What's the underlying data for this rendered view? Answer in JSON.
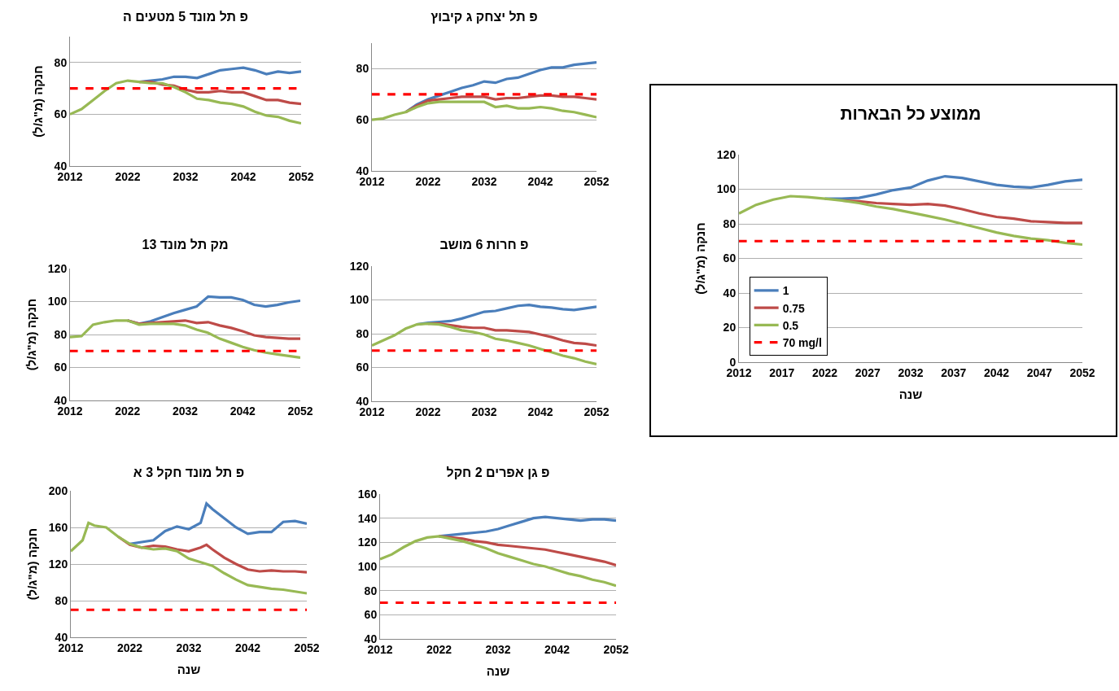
{
  "chart_data": [
    {
      "type": "line",
      "title": "פ תל מונד 5 מטעים ה",
      "ylabel": "חנקה (מ\"ג/ל)",
      "x": [
        2012,
        2014,
        2016,
        2018,
        2020,
        2022,
        2024,
        2026,
        2028,
        2030,
        2032,
        2034,
        2036,
        2038,
        2040,
        2042,
        2044,
        2046,
        2048,
        2050,
        2052
      ],
      "xlim": [
        2012,
        2052
      ],
      "xticks": [
        2012,
        2022,
        2032,
        2042,
        2052
      ],
      "ylim": [
        40,
        90
      ],
      "yticks": [
        40,
        60,
        80
      ],
      "grid": "y",
      "legend": false,
      "series": [
        {
          "color": "#4a7ebb",
          "values": [
            null,
            null,
            null,
            null,
            null,
            null,
            72.5,
            73,
            73.5,
            74.5,
            74.5,
            74,
            75.5,
            77,
            77.5,
            78,
            77,
            75.5,
            76.5,
            76,
            76.5
          ]
        },
        {
          "color": "#be4b48",
          "values": [
            null,
            null,
            null,
            null,
            null,
            null,
            72.5,
            72.5,
            71.5,
            71,
            69.5,
            68.5,
            68.5,
            69,
            68.5,
            68.5,
            67,
            65.5,
            65.5,
            64.5,
            64
          ]
        },
        {
          "color": "#98b954",
          "values": [
            60,
            62,
            65.5,
            69,
            72,
            73,
            72.5,
            72,
            72,
            70.5,
            68.5,
            66,
            65.5,
            64.5,
            64,
            63,
            61,
            59.5,
            59,
            57.5,
            56.5
          ]
        }
      ],
      "ref_lines": [
        {
          "axis": "y",
          "value": 70,
          "color": "#ff0000",
          "line_style": "dashed"
        }
      ]
    },
    {
      "type": "line",
      "title": "פ תל יצחק ג קיבוץ",
      "x": [
        2012,
        2014,
        2016,
        2018,
        2020,
        2022,
        2024,
        2026,
        2028,
        2030,
        2032,
        2034,
        2036,
        2038,
        2040,
        2042,
        2044,
        2046,
        2048,
        2050,
        2052
      ],
      "xlim": [
        2012,
        2052
      ],
      "xticks": [
        2012,
        2022,
        2032,
        2042,
        2052
      ],
      "ylim": [
        40,
        90
      ],
      "yticks": [
        40,
        60,
        80
      ],
      "grid": "y",
      "legend": false,
      "series": [
        {
          "color": "#4a7ebb",
          "values": [
            null,
            null,
            null,
            63,
            66,
            68,
            69.5,
            71,
            72.5,
            73.5,
            75,
            74.5,
            76,
            76.5,
            78,
            79.5,
            80.5,
            80.5,
            81.5,
            82,
            82.5
          ]
        },
        {
          "color": "#be4b48",
          "values": [
            null,
            null,
            null,
            63,
            65.5,
            67.5,
            68,
            68.5,
            69,
            69,
            69,
            68,
            68.5,
            68.5,
            69,
            69.5,
            69.5,
            69,
            69,
            68.5,
            68
          ]
        },
        {
          "color": "#98b954",
          "values": [
            60,
            60.5,
            62,
            63,
            65,
            66.5,
            67,
            67,
            67,
            67,
            67,
            65,
            65.5,
            64.5,
            64.5,
            65,
            64.5,
            63.5,
            63,
            62,
            61
          ]
        }
      ],
      "ref_lines": [
        {
          "axis": "y",
          "value": 70,
          "color": "#ff0000",
          "line_style": "dashed"
        }
      ]
    },
    {
      "type": "line",
      "title": "מק תל מונד 13",
      "ylabel": "חנקה (מ\"ג/ל)",
      "x": [
        2012,
        2014,
        2016,
        2018,
        2020,
        2022,
        2024,
        2026,
        2028,
        2030,
        2032,
        2034,
        2036,
        2038,
        2040,
        2042,
        2044,
        2046,
        2048,
        2050,
        2052
      ],
      "xlim": [
        2012,
        2052
      ],
      "xticks": [
        2012,
        2022,
        2032,
        2042,
        2052
      ],
      "ylim": [
        40,
        120
      ],
      "yticks": [
        40,
        60,
        80,
        100,
        120
      ],
      "grid": "y",
      "legend": false,
      "series": [
        {
          "color": "#4a7ebb",
          "values": [
            null,
            null,
            null,
            null,
            null,
            88.5,
            86.5,
            88,
            90.5,
            93,
            95,
            97,
            103,
            102.5,
            102.5,
            101,
            98,
            97,
            98,
            99.5,
            100.5
          ]
        },
        {
          "color": "#be4b48",
          "values": [
            null,
            null,
            null,
            null,
            null,
            88.5,
            86.5,
            87,
            87.5,
            88,
            88.5,
            87,
            87.5,
            85.5,
            84,
            82,
            79.5,
            78.5,
            78,
            77.5,
            77.5
          ]
        },
        {
          "color": "#98b954",
          "values": [
            78.5,
            79,
            86,
            87.5,
            88.5,
            88.5,
            86,
            86.5,
            86.5,
            86.5,
            85.5,
            83,
            81,
            77.5,
            75,
            72.5,
            70.5,
            69,
            68,
            67,
            66
          ]
        }
      ],
      "ref_lines": [
        {
          "axis": "y",
          "value": 70,
          "color": "#ff0000",
          "line_style": "dashed"
        }
      ]
    },
    {
      "type": "line",
      "title": "פ חרות 6 מושב",
      "x": [
        2012,
        2014,
        2016,
        2018,
        2020,
        2022,
        2024,
        2026,
        2028,
        2030,
        2032,
        2034,
        2036,
        2038,
        2040,
        2042,
        2044,
        2046,
        2048,
        2050,
        2052
      ],
      "xlim": [
        2012,
        2052
      ],
      "xticks": [
        2012,
        2022,
        2032,
        2042,
        2052
      ],
      "ylim": [
        40,
        120
      ],
      "yticks": [
        40,
        60,
        80,
        100,
        120
      ],
      "grid": "y",
      "legend": false,
      "series": [
        {
          "color": "#4a7ebb",
          "values": [
            null,
            null,
            null,
            null,
            85.5,
            86.5,
            87,
            87.5,
            89,
            91,
            93,
            93.5,
            95,
            96.5,
            97,
            96,
            95.5,
            94.5,
            94,
            95,
            96
          ]
        },
        {
          "color": "#be4b48",
          "values": [
            null,
            null,
            null,
            null,
            null,
            86,
            86,
            85,
            84,
            83.5,
            83.5,
            82,
            82,
            81.5,
            81,
            79.5,
            78,
            76,
            74.5,
            74,
            73
          ]
        },
        {
          "color": "#98b954",
          "values": [
            73,
            76,
            79,
            83,
            85.5,
            86,
            85.5,
            84,
            82,
            81,
            79.5,
            77,
            76,
            74.5,
            73,
            71,
            69,
            67,
            65.5,
            63.5,
            62
          ]
        }
      ],
      "ref_lines": [
        {
          "axis": "y",
          "value": 70,
          "color": "#ff0000",
          "line_style": "dashed"
        }
      ]
    },
    {
      "type": "line",
      "title": "פ תל מונד חקל 3 א",
      "xlabel": "שנה",
      "ylabel": "חנקה (מ\"ג/ל)",
      "x": [
        2012,
        2014,
        2015,
        2016,
        2018,
        2020,
        2022,
        2024,
        2026,
        2028,
        2030,
        2032,
        2034,
        2035,
        2036,
        2038,
        2040,
        2042,
        2044,
        2046,
        2048,
        2050,
        2052
      ],
      "xlim": [
        2012,
        2052
      ],
      "xticks": [
        2012,
        2022,
        2032,
        2042,
        2052
      ],
      "ylim": [
        40,
        200
      ],
      "yticks": [
        40,
        80,
        120,
        160,
        200
      ],
      "grid": "y",
      "legend": false,
      "series": [
        {
          "color": "#4a7ebb",
          "values": [
            null,
            null,
            null,
            null,
            null,
            null,
            142,
            144,
            146,
            156,
            161,
            158,
            165,
            186,
            180,
            170,
            160,
            153,
            155,
            155,
            166,
            167,
            164
          ]
        },
        {
          "color": "#be4b48",
          "values": [
            null,
            null,
            null,
            null,
            null,
            150,
            141,
            138,
            140,
            139,
            136,
            134,
            138,
            141,
            136,
            127,
            120,
            114,
            112,
            113,
            112,
            112,
            111
          ]
        },
        {
          "color": "#98b954",
          "values": [
            134,
            146,
            165,
            162,
            160,
            150,
            142,
            138,
            136,
            137,
            134,
            126,
            122,
            120,
            118,
            110,
            103,
            97,
            95,
            93,
            92,
            90,
            88
          ]
        }
      ],
      "ref_lines": [
        {
          "axis": "y",
          "value": 70,
          "color": "#ff0000",
          "line_style": "dashed"
        }
      ]
    },
    {
      "type": "line",
      "title": "פ גן אפרים 2 חקל",
      "xlabel": "שנה",
      "x": [
        2012,
        2014,
        2016,
        2018,
        2020,
        2022,
        2024,
        2026,
        2028,
        2030,
        2032,
        2034,
        2036,
        2038,
        2040,
        2042,
        2044,
        2046,
        2048,
        2050,
        2052
      ],
      "xlim": [
        2012,
        2052
      ],
      "xticks": [
        2012,
        2022,
        2032,
        2042,
        2052
      ],
      "ylim": [
        40,
        160
      ],
      "yticks": [
        40,
        60,
        80,
        100,
        120,
        140,
        160
      ],
      "grid": "y",
      "legend": false,
      "series": [
        {
          "color": "#4a7ebb",
          "values": [
            null,
            null,
            null,
            null,
            null,
            125,
            126,
            127,
            128,
            129,
            131,
            134,
            137,
            140,
            141,
            140,
            139,
            138,
            139,
            139,
            138
          ]
        },
        {
          "color": "#be4b48",
          "values": [
            null,
            null,
            null,
            null,
            null,
            125,
            124,
            123,
            121,
            120,
            118,
            117,
            116,
            115,
            114,
            112,
            110,
            108,
            106,
            104,
            101
          ]
        },
        {
          "color": "#98b954",
          "values": [
            106,
            110,
            116,
            121,
            124,
            125,
            123,
            121,
            118,
            115,
            111,
            108,
            105,
            102,
            100,
            97,
            94,
            92,
            89,
            87,
            84
          ]
        }
      ],
      "ref_lines": [
        {
          "axis": "y",
          "value": 70,
          "color": "#ff0000",
          "line_style": "dashed"
        }
      ]
    },
    {
      "type": "line",
      "title": "ממוצע כל הבארות",
      "xlabel": "שנה",
      "ylabel": "חנקה (מ\"ג/ל)",
      "x": [
        2012,
        2014,
        2016,
        2018,
        2020,
        2022,
        2024,
        2026,
        2028,
        2030,
        2032,
        2034,
        2036,
        2038,
        2040,
        2042,
        2044,
        2046,
        2048,
        2050,
        2052
      ],
      "xlim": [
        2012,
        2052
      ],
      "xticks": [
        2012,
        2017,
        2022,
        2027,
        2032,
        2037,
        2042,
        2047,
        2052
      ],
      "ylim": [
        0,
        120
      ],
      "yticks": [
        0,
        20,
        40,
        60,
        80,
        100,
        120
      ],
      "grid": "y",
      "legend": "bottom left",
      "series": [
        {
          "name": "1",
          "color": "#4a7ebb",
          "values": [
            null,
            null,
            null,
            null,
            null,
            94.5,
            94.5,
            95,
            97,
            99.5,
            101,
            105,
            107.5,
            106.5,
            104.5,
            102.5,
            101.5,
            101,
            102.5,
            104.5,
            105.5
          ]
        },
        {
          "name": "0.75",
          "color": "#be4b48",
          "values": [
            null,
            null,
            null,
            null,
            null,
            null,
            93.5,
            93,
            92,
            91.5,
            91,
            91.5,
            90.5,
            88.5,
            86,
            84,
            83,
            81.5,
            81,
            80.5,
            80.5
          ]
        },
        {
          "name": "0.5",
          "color": "#98b954",
          "values": [
            86,
            91,
            94,
            96,
            95.5,
            94.5,
            93.5,
            92,
            90,
            88.5,
            86.5,
            84.5,
            82.5,
            80,
            77.5,
            75,
            73,
            71.5,
            70.5,
            69,
            68
          ]
        }
      ],
      "ref_lines": [
        {
          "axis": "y",
          "value": 70,
          "label": "70 mg/l",
          "color": "#ff0000",
          "line_style": "dashed"
        }
      ]
    }
  ]
}
